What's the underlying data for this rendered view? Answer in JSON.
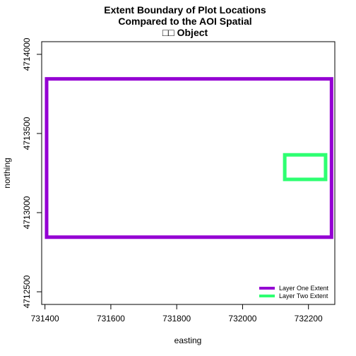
{
  "chart_data": {
    "type": "line",
    "title_lines": [
      "Extent Boundary of Plot Locations",
      "Compared to the AOI Spatial",
      "□□ Object"
    ],
    "xlabel": "easting",
    "ylabel": "northing",
    "xlim": [
      731390,
      732280
    ],
    "ylim": [
      4712420,
      4714080
    ],
    "x_ticks": [
      731400,
      731600,
      731800,
      732000,
      732200
    ],
    "y_ticks": [
      4712500,
      4713000,
      4713500,
      4714000
    ],
    "grid": false,
    "legend_position": "bottom-right",
    "series": [
      {
        "name": "Layer One Extent",
        "color": "#9400D3",
        "rect": {
          "xmin": 731405,
          "xmax": 732270,
          "ymin": 4712845,
          "ymax": 4713845
        }
      },
      {
        "name": "Layer Two Extent",
        "color": "#2EFF71",
        "rect": {
          "xmin": 732128,
          "xmax": 732252,
          "ymin": 4713210,
          "ymax": 4713365
        }
      }
    ]
  }
}
